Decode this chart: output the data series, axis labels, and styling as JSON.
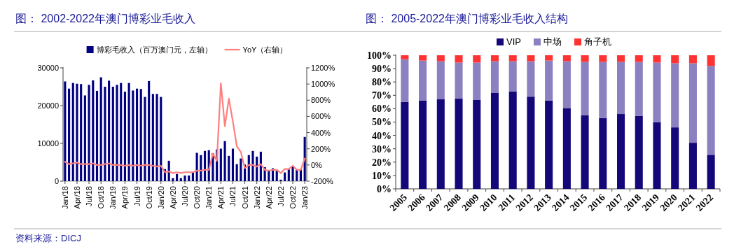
{
  "chart_data": [
    {
      "type": "bar",
      "title": "图：  2002-2022年澳门博彩业毛收入",
      "categories": [
        "Jan/18",
        null,
        null,
        "Apr/18",
        null,
        null,
        "Jul/18",
        null,
        null,
        "Oct/18",
        null,
        null,
        "Jan/19",
        null,
        null,
        "Apr/19",
        null,
        null,
        "Jul/19",
        null,
        null,
        "Oct/19",
        null,
        null,
        "Jan/20",
        null,
        null,
        "Apr/20",
        null,
        null,
        "Jul/20",
        null,
        null,
        "Oct/20",
        null,
        null,
        "Jan/21",
        null,
        null,
        "Apr/21",
        null,
        null,
        "Jul/21",
        null,
        null,
        "Oct/21",
        null,
        null,
        "Jan/22",
        null,
        null,
        "Apr/22",
        null,
        null,
        "Jul/22",
        null,
        null,
        "Oct/22",
        null,
        null,
        "Jan/23"
      ],
      "series": [
        {
          "name": "博彩毛收入（百万澳门元，左轴）",
          "color": "#000080",
          "values": [
            26400,
            24500,
            26000,
            25800,
            25700,
            22700,
            25500,
            26700,
            23900,
            27500,
            25000,
            26600,
            25000,
            25500,
            26000,
            23700,
            26000,
            24000,
            24500,
            24400,
            22300,
            26500,
            23100,
            23100,
            22300,
            3200,
            5400,
            800,
            1900,
            800,
            1500,
            1500,
            2300,
            7500,
            6900,
            8000,
            8200,
            7400,
            8400,
            8600,
            10600,
            6700,
            8600,
            4500,
            6000,
            4400,
            6900,
            8000,
            6500,
            7800,
            3700,
            2700,
            3400,
            2700,
            400,
            2300,
            3100,
            4000,
            3100,
            3100,
            11700
          ]
        },
        {
          "name": "YoY（右轴）",
          "type": "line",
          "axis": "y2",
          "color": "#ff7f7f",
          "values": [
            40,
            10,
            20,
            30,
            10,
            10,
            10,
            20,
            0,
            0,
            10,
            20,
            0,
            0,
            0,
            -10,
            0,
            -10,
            0,
            -10,
            0,
            0,
            -10,
            -20,
            -10,
            -90,
            -80,
            -100,
            -90,
            -100,
            -90,
            -90,
            -90,
            -70,
            -70,
            -60,
            -60,
            140,
            50,
            1010,
            480,
            820,
            540,
            230,
            160,
            -40,
            0,
            0,
            -20,
            10,
            -60,
            -70,
            -60,
            -60,
            -100,
            -50,
            -50,
            -10,
            -60,
            -60,
            80
          ]
        }
      ],
      "ylim": [
        0,
        30000
      ],
      "yticks": [
        0,
        10000,
        20000,
        30000
      ],
      "y2lim": [
        -200,
        1200
      ],
      "y2ticks": [
        {
          "value": -200,
          "label": "-200%"
        },
        {
          "value": 0,
          "label": "0%"
        },
        {
          "value": 200,
          "label": "200%"
        },
        {
          "value": 400,
          "label": "400%"
        },
        {
          "value": 600,
          "label": "600%"
        },
        {
          "value": 800,
          "label": "800%"
        },
        {
          "value": 1000,
          "label": "1000%"
        },
        {
          "value": 1200,
          "label": "1200%"
        }
      ],
      "legend": "top",
      "annotations": [
        "资料来源：DICJ"
      ]
    },
    {
      "type": "bar",
      "title": "图：  2005-2022年澳门博彩业毛收入结构",
      "stacked": true,
      "categories": [
        "2005",
        "2006",
        "2007",
        "2008",
        "2009",
        "2010",
        "2011",
        "2012",
        "2013",
        "2014",
        "2015",
        "2016",
        "2017",
        "2018",
        "2019",
        "2020",
        "2021",
        "2022"
      ],
      "series": [
        {
          "name": "VIP",
          "color": "#14077a",
          "values": [
            65,
            66,
            67,
            67.5,
            66.5,
            72,
            73,
            69,
            66,
            60.5,
            55,
            53,
            56,
            54.5,
            50,
            46,
            34.5,
            25.5
          ]
        },
        {
          "name": "中场",
          "color": "#8b80c0",
          "values": [
            32,
            30,
            28.5,
            27,
            28,
            23.5,
            22.5,
            26.5,
            30,
            35,
            40,
            42,
            39,
            40.5,
            44.5,
            48,
            59.5,
            66.5
          ]
        },
        {
          "name": "角子机",
          "color": "#ff3333",
          "values": [
            3,
            4,
            4.5,
            5.5,
            5.5,
            4.5,
            4.5,
            4.5,
            4,
            4.5,
            5,
            5,
            5,
            5,
            5.5,
            6,
            6,
            8
          ]
        }
      ],
      "ylim": [
        0,
        100
      ],
      "yticks": [
        {
          "value": 0,
          "label": "0%"
        },
        {
          "value": 10,
          "label": "10%"
        },
        {
          "value": 20,
          "label": "20%"
        },
        {
          "value": 30,
          "label": "30%"
        },
        {
          "value": 40,
          "label": "40%"
        },
        {
          "value": 50,
          "label": "50%"
        },
        {
          "value": 60,
          "label": "60%"
        },
        {
          "value": 70,
          "label": "70%"
        },
        {
          "value": 80,
          "label": "80%"
        },
        {
          "value": 90,
          "label": "90%"
        },
        {
          "value": 100,
          "label": "100%"
        }
      ],
      "legend": "top"
    }
  ]
}
